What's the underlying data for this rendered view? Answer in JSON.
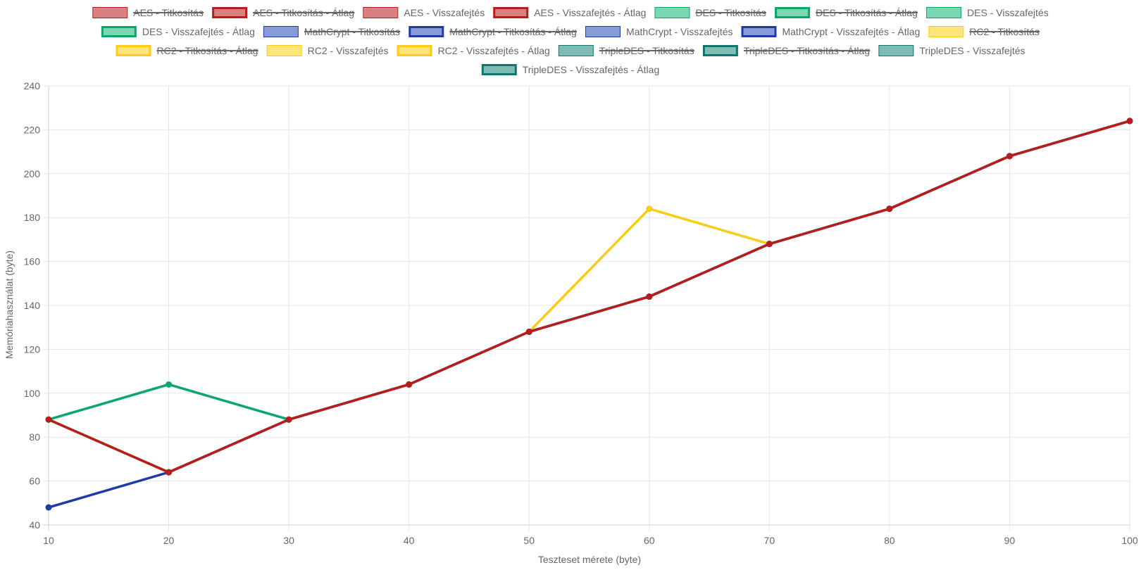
{
  "chart_data": {
    "type": "line",
    "title": "",
    "xlabel": "Teszteset mérete (byte)",
    "ylabel": "Memóriahasználat (byte)",
    "x": [
      10,
      20,
      30,
      40,
      50,
      60,
      70,
      80,
      90,
      100
    ],
    "xlim": [
      10,
      100
    ],
    "ylim": [
      40,
      240
    ],
    "y_ticks": [
      40,
      60,
      80,
      100,
      120,
      140,
      160,
      180,
      200,
      220,
      240
    ],
    "grid": true,
    "legend_position": "top",
    "legend": [
      {
        "name": "AES - Titkosítás",
        "fill": "#da8080",
        "stroke": "#b91c1c",
        "hidden": true,
        "bold": false
      },
      {
        "name": "AES - Titkosítás - Átlag",
        "fill": "#da8080",
        "stroke": "#b91c1c",
        "hidden": true,
        "bold": true
      },
      {
        "name": "AES - Visszafejtés",
        "fill": "#da8080",
        "stroke": "#b91c1c",
        "hidden": false,
        "bold": false
      },
      {
        "name": "AES - Visszafejtés - Átlag",
        "fill": "#da8080",
        "stroke": "#b91c1c",
        "hidden": false,
        "bold": true
      },
      {
        "name": "DES - Titkosítás",
        "fill": "#7ad7b2",
        "stroke": "#0ba66a",
        "hidden": true,
        "bold": false
      },
      {
        "name": "DES - Titkosítás - Átlag",
        "fill": "#7ad7b2",
        "stroke": "#0ba66a",
        "hidden": true,
        "bold": true
      },
      {
        "name": "DES - Visszafejtés",
        "fill": "#7ad7b2",
        "stroke": "#0ba66a",
        "hidden": false,
        "bold": false
      },
      {
        "name": "DES - Visszafejtés - Átlag",
        "fill": "#7ad7b2",
        "stroke": "#0ba66a",
        "hidden": false,
        "bold": true
      },
      {
        "name": "MathCrypt - Titkosítás",
        "fill": "#8a9ad8",
        "stroke": "#1e3aa8",
        "hidden": true,
        "bold": false
      },
      {
        "name": "MathCrypt - Titkosítás - Átlag",
        "fill": "#8a9ad8",
        "stroke": "#1e3aa8",
        "hidden": true,
        "bold": true
      },
      {
        "name": "MathCrypt - Visszafejtés",
        "fill": "#8a9ad8",
        "stroke": "#1e3aa8",
        "hidden": false,
        "bold": false
      },
      {
        "name": "MathCrypt - Visszafejtés - Átlag",
        "fill": "#8a9ad8",
        "stroke": "#1e3aa8",
        "hidden": false,
        "bold": true
      },
      {
        "name": "RC2 - Titkosítás",
        "fill": "#fde57a",
        "stroke": "#facc15",
        "hidden": true,
        "bold": false
      },
      {
        "name": "RC2 - Titkosítás - Átlag",
        "fill": "#fde57a",
        "stroke": "#facc15",
        "hidden": true,
        "bold": true
      },
      {
        "name": "RC2 - Visszafejtés",
        "fill": "#fde57a",
        "stroke": "#facc15",
        "hidden": false,
        "bold": false
      },
      {
        "name": "RC2 - Visszafejtés - Átlag",
        "fill": "#fde57a",
        "stroke": "#facc15",
        "hidden": false,
        "bold": true
      },
      {
        "name": "TripleDES - Titkosítás",
        "fill": "#7fbdb4",
        "stroke": "#0f766e",
        "hidden": true,
        "bold": false
      },
      {
        "name": "TripleDES - Titkosítás - Átlag",
        "fill": "#7fbdb4",
        "stroke": "#0f766e",
        "hidden": true,
        "bold": true
      },
      {
        "name": "TripleDES - Visszafejtés",
        "fill": "#7fbdb4",
        "stroke": "#0f766e",
        "hidden": false,
        "bold": false
      },
      {
        "name": "TripleDES - Visszafejtés - Átlag",
        "fill": "#7fbdb4",
        "stroke": "#0f766e",
        "hidden": false,
        "bold": true
      }
    ],
    "series": [
      {
        "name": "TripleDES - Visszafejtés - Átlag",
        "color": "#0f766e",
        "values": [
          88,
          64,
          88,
          104,
          128,
          144,
          168,
          184,
          208,
          224
        ]
      },
      {
        "name": "RC2 - Visszafejtés - Átlag",
        "color": "#facc15",
        "values": [
          88,
          64,
          88,
          104,
          128,
          184,
          168,
          184,
          208,
          224
        ]
      },
      {
        "name": "MathCrypt - Visszafejtés - Átlag",
        "color": "#1e3aa8",
        "values": [
          48,
          64,
          88,
          104,
          128,
          144,
          168,
          184,
          208,
          224
        ]
      },
      {
        "name": "DES - Visszafejtés - Átlag",
        "color": "#0ba66a",
        "values": [
          88,
          104,
          88,
          104,
          128,
          144,
          168,
          184,
          208,
          224
        ]
      },
      {
        "name": "AES - Visszafejtés - Átlag",
        "color": "#b91c1c",
        "values": [
          88,
          64,
          88,
          104,
          128,
          144,
          168,
          184,
          208,
          224
        ]
      }
    ]
  }
}
